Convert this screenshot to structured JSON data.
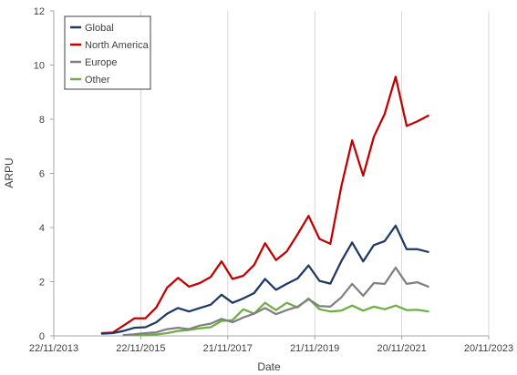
{
  "chart_data": {
    "type": "line",
    "title": "",
    "xlabel": "Date",
    "ylabel": "ARPU",
    "xlim": [
      "2013-11-22",
      "2023-11-20"
    ],
    "ylim": [
      0,
      12
    ],
    "x_ticks": [
      "2013-11-22",
      "2015-11-22",
      "2017-11-21",
      "2019-11-21",
      "2021-11-20",
      "2023-11-20"
    ],
    "x_tick_labels": [
      "22/11/2013",
      "22/11/2015",
      "21/11/2017",
      "21/11/2019",
      "20/11/2021",
      "20/11/2023"
    ],
    "y_ticks": [
      0,
      2,
      4,
      6,
      8,
      10,
      12
    ],
    "y_tick_labels": [
      "0",
      "2",
      "4",
      "6",
      "8",
      "10",
      "12"
    ],
    "grid": {
      "vertical": true,
      "horizontal": false
    },
    "legend_position": "top-left",
    "x": [
      "2014-12-31",
      "2015-03-31",
      "2015-06-30",
      "2015-09-30",
      "2015-12-31",
      "2016-03-31",
      "2016-06-30",
      "2016-09-30",
      "2016-12-31",
      "2017-03-31",
      "2017-06-30",
      "2017-09-30",
      "2017-12-31",
      "2018-03-31",
      "2018-06-30",
      "2018-09-30",
      "2018-12-31",
      "2019-03-31",
      "2019-06-30",
      "2019-09-30",
      "2019-12-31",
      "2020-03-31",
      "2020-06-30",
      "2020-09-30",
      "2020-12-31",
      "2021-03-31",
      "2021-06-30",
      "2021-09-30",
      "2021-12-31",
      "2022-03-31",
      "2022-06-30",
      "2022-09-30"
    ],
    "series": [
      {
        "name": "Global",
        "color": "#1f3864",
        "values": [
          0.08,
          0.1,
          0.18,
          0.3,
          0.32,
          0.5,
          0.82,
          1.03,
          0.9,
          1.03,
          1.15,
          1.52,
          1.22,
          1.38,
          1.58,
          2.1,
          1.7,
          1.92,
          2.12,
          2.6,
          2.03,
          1.93,
          2.75,
          3.45,
          2.75,
          3.35,
          3.5,
          4.07,
          3.2,
          3.2,
          3.1,
          null
        ]
      },
      {
        "name": "North America",
        "color": "#c00000",
        "values": [
          0.1,
          0.12,
          0.38,
          0.65,
          0.65,
          1.05,
          1.78,
          2.14,
          1.82,
          1.95,
          2.17,
          2.75,
          2.1,
          2.22,
          2.62,
          3.42,
          2.8,
          3.12,
          3.75,
          4.43,
          3.58,
          3.4,
          5.5,
          7.22,
          5.92,
          7.35,
          8.2,
          9.57,
          7.75,
          7.92,
          8.13,
          null
        ]
      },
      {
        "name": "Europe",
        "color": "#808080",
        "values": [
          null,
          null,
          0.03,
          0.06,
          0.1,
          0.13,
          0.25,
          0.3,
          0.25,
          0.38,
          0.45,
          0.63,
          0.5,
          0.68,
          0.82,
          1.03,
          0.8,
          0.95,
          1.08,
          1.35,
          1.1,
          1.08,
          1.42,
          1.92,
          1.48,
          1.95,
          1.92,
          2.52,
          1.92,
          1.98,
          1.82,
          null
        ]
      },
      {
        "name": "Other",
        "color": "#70ad47",
        "values": [
          null,
          null,
          null,
          0.03,
          0.03,
          0.05,
          0.1,
          0.18,
          0.22,
          0.28,
          0.32,
          0.55,
          0.58,
          0.98,
          0.82,
          1.22,
          0.95,
          1.22,
          1.05,
          1.38,
          0.98,
          0.9,
          0.93,
          1.12,
          0.93,
          1.08,
          0.98,
          1.12,
          0.95,
          0.96,
          0.9,
          null
        ]
      }
    ]
  }
}
